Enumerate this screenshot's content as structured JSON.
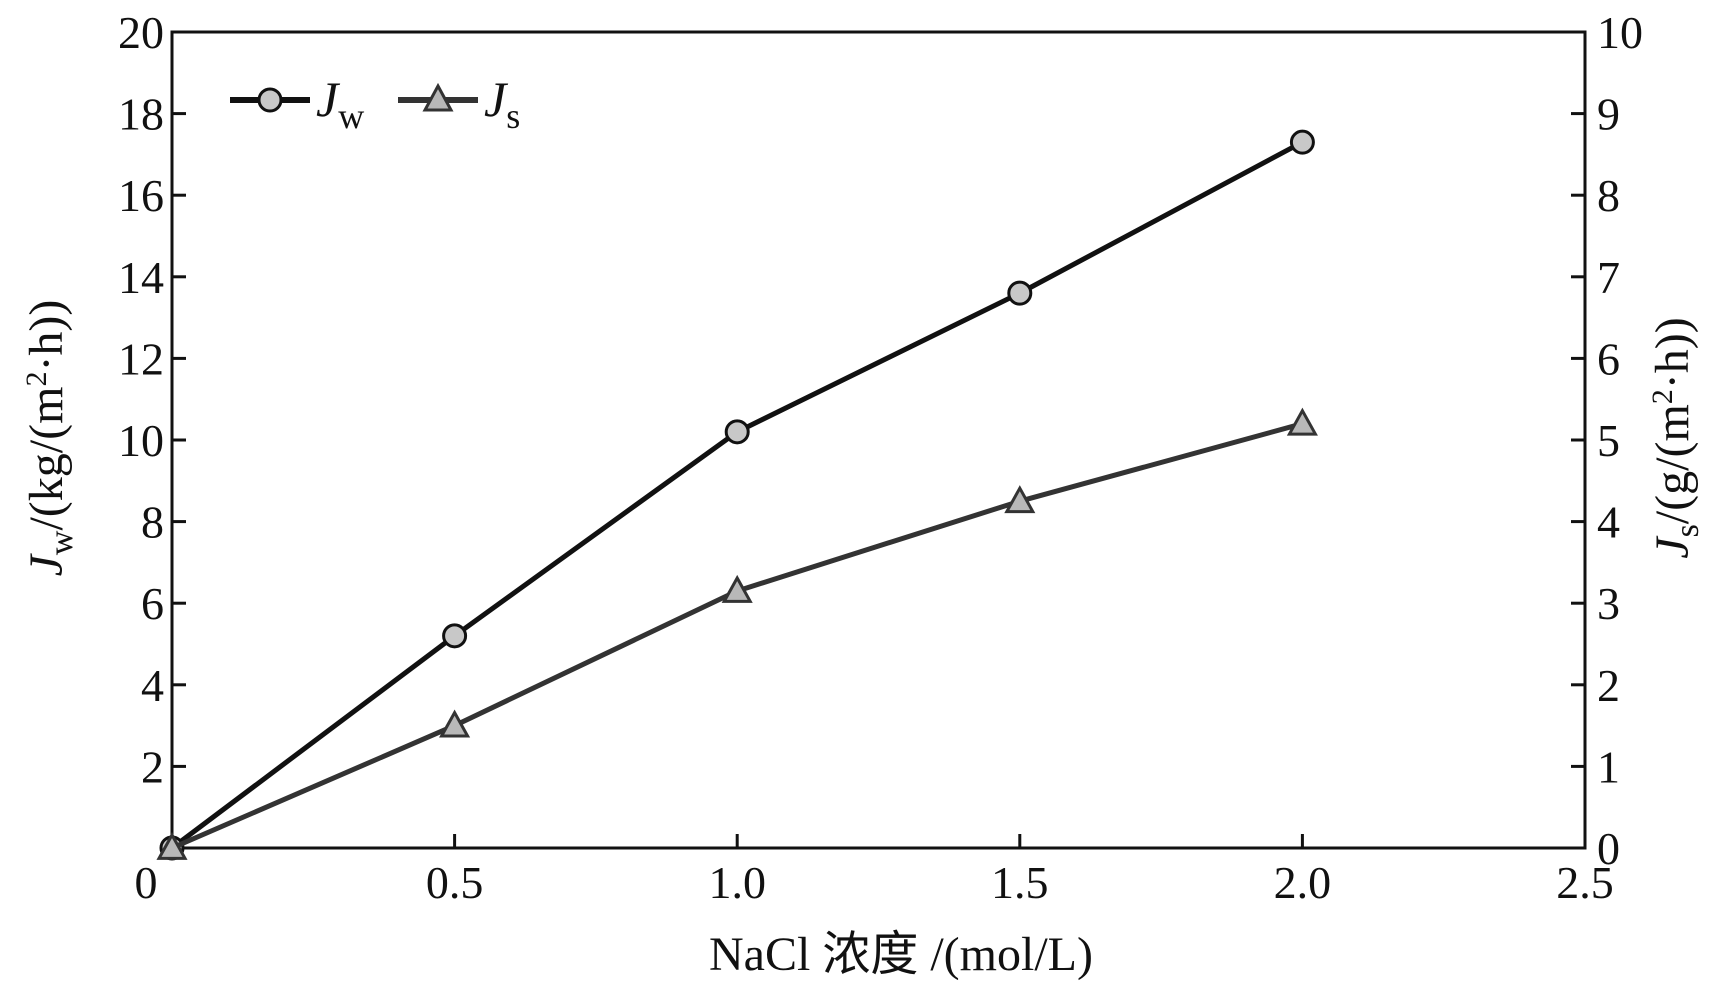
{
  "chart_data": {
    "type": "line",
    "x": [
      0,
      0.5,
      1.0,
      1.5,
      2.0
    ],
    "x_ticks": [
      "0",
      "0.5",
      "1.0",
      "1.5",
      "2.0",
      "2.5"
    ],
    "xlim": [
      0,
      2.5
    ],
    "xlabel": "NaCl 浓度 /(mol/L)",
    "y_left": {
      "label_main": "J",
      "label_sub": "w",
      "label_unit": "/(kg/(m",
      "label_sup": "2",
      "label_end": "·h))",
      "lim": [
        0,
        20
      ],
      "ticks": [
        "2",
        "4",
        "6",
        "8",
        "10",
        "12",
        "14",
        "16",
        "18",
        "20"
      ]
    },
    "y_right": {
      "label_main": "J",
      "label_sub": "s",
      "label_unit": "/(g/(m",
      "label_sup": "2",
      "label_end": "·h))",
      "lim": [
        0,
        10
      ],
      "ticks": [
        "0",
        "1",
        "2",
        "3",
        "4",
        "5",
        "6",
        "7",
        "8",
        "9",
        "10"
      ]
    },
    "series": [
      {
        "name_main": "J",
        "name_sub": "w",
        "axis": "left",
        "marker": "circle",
        "color": "#111111",
        "values": [
          0,
          5.2,
          10.2,
          13.6,
          17.3
        ]
      },
      {
        "name_main": "J",
        "name_sub": "s",
        "axis": "right",
        "marker": "triangle",
        "color": "#333333",
        "values": [
          0,
          1.5,
          3.15,
          4.25,
          5.2
        ]
      }
    ],
    "legend_position": "top-left",
    "grid": false
  }
}
